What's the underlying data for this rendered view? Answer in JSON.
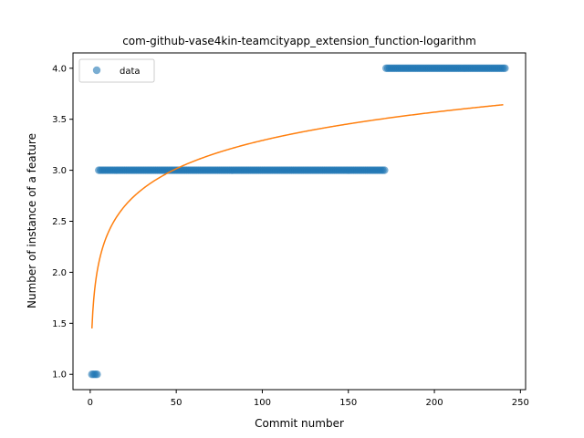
{
  "chart_data": {
    "type": "scatter",
    "title": "com-github-vase4kin-teamcityapp_extension_function-logarithm",
    "xlabel": "Commit number",
    "ylabel": "Number of instance of a feature",
    "xlim": [
      -10,
      253
    ],
    "ylim": [
      0.85,
      4.15
    ],
    "xticks": [
      0,
      50,
      100,
      150,
      200,
      250
    ],
    "yticks": [
      1.0,
      1.5,
      2.0,
      2.5,
      3.0,
      3.5,
      4.0
    ],
    "xtick_labels": [
      "0",
      "50",
      "100",
      "150",
      "200",
      "250"
    ],
    "ytick_labels": [
      "1.0",
      "1.5",
      "2.0",
      "2.5",
      "3.0",
      "3.5",
      "4.0"
    ],
    "legend": {
      "entries": [
        "data"
      ],
      "placement": "upper-left"
    },
    "grid": false,
    "series": [
      {
        "name": "data",
        "kind": "scatter",
        "color": "#1f77b4",
        "segments": [
          {
            "x_start": 1,
            "x_end": 4,
            "y": 1
          },
          {
            "x_start": 5,
            "x_end": 171,
            "y": 3
          },
          {
            "x_start": 172,
            "x_end": 241,
            "y": 4
          }
        ]
      },
      {
        "kind": "line",
        "color": "#ff7f0e",
        "function": "logarithm",
        "a": 0.4,
        "b": 1.45,
        "x_range": [
          1,
          240
        ]
      }
    ]
  }
}
